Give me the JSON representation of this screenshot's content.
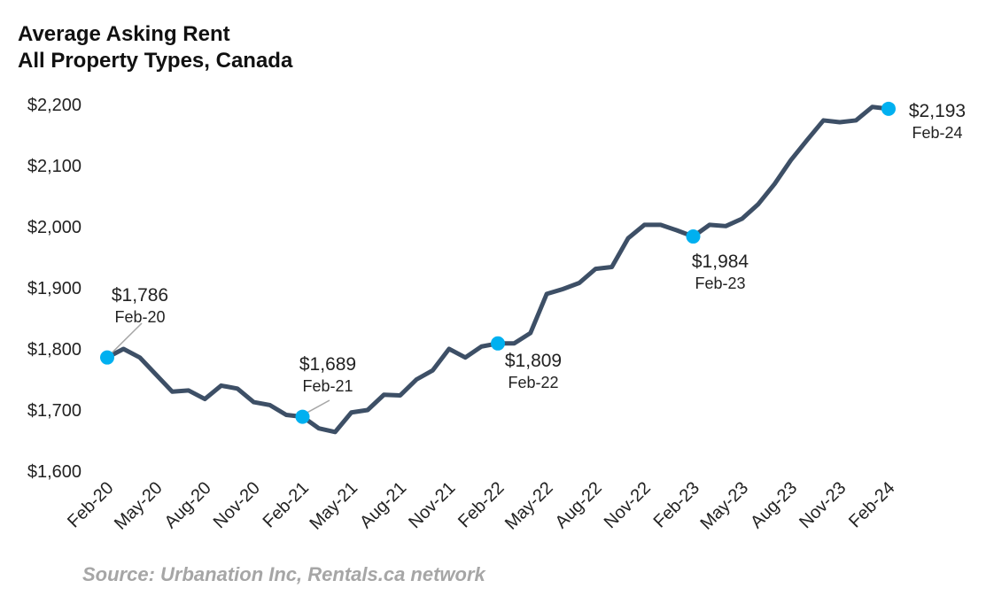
{
  "chart_data": {
    "type": "line",
    "title": "Average Asking Rent",
    "subtitle": "All Property Types, Canada",
    "source": "Source: Urbanation Inc, Rentals.ca network",
    "ylim": [
      1600,
      2200
    ],
    "yticks": [
      "$1,600",
      "$1,700",
      "$1,800",
      "$1,900",
      "$2,000",
      "$2,100",
      "$2,200"
    ],
    "ytick_values": [
      1600,
      1700,
      1800,
      1900,
      2000,
      2100,
      2200
    ],
    "xtick_labels": [
      "Feb-20",
      "May-20",
      "Aug-20",
      "Nov-20",
      "Feb-21",
      "May-21",
      "Aug-21",
      "Nov-21",
      "Feb-22",
      "May-22",
      "Aug-22",
      "Nov-22",
      "Feb-23",
      "May-23",
      "Aug-23",
      "Nov-23",
      "Feb-24"
    ],
    "x_start": "Feb-20",
    "x_end": "Feb-24",
    "grid": false,
    "line_color": "#3d4f66",
    "marker_color": "#00b0f0",
    "values": [
      1786,
      1800,
      1786,
      1758,
      1730,
      1732,
      1718,
      1740,
      1735,
      1713,
      1708,
      1692,
      1689,
      1670,
      1664,
      1696,
      1700,
      1725,
      1724,
      1750,
      1765,
      1800,
      1786,
      1804,
      1809,
      1809,
      1826,
      1890,
      1898,
      1908,
      1931,
      1934,
      1981,
      2003,
      2003,
      1994,
      1984,
      2003,
      2001,
      2013,
      2037,
      2070,
      2109,
      2142,
      2174,
      2171,
      2174,
      2196,
      2193
    ],
    "annotations": [
      {
        "index": 0,
        "value": "$1,786",
        "date": "Feb-20"
      },
      {
        "index": 12,
        "value": "$1,689",
        "date": "Feb-21"
      },
      {
        "index": 24,
        "value": "$1,809",
        "date": "Feb-22"
      },
      {
        "index": 36,
        "value": "$1,984",
        "date": "Feb-23"
      },
      {
        "index": 48,
        "value": "$2,193",
        "date": "Feb-24"
      }
    ]
  }
}
